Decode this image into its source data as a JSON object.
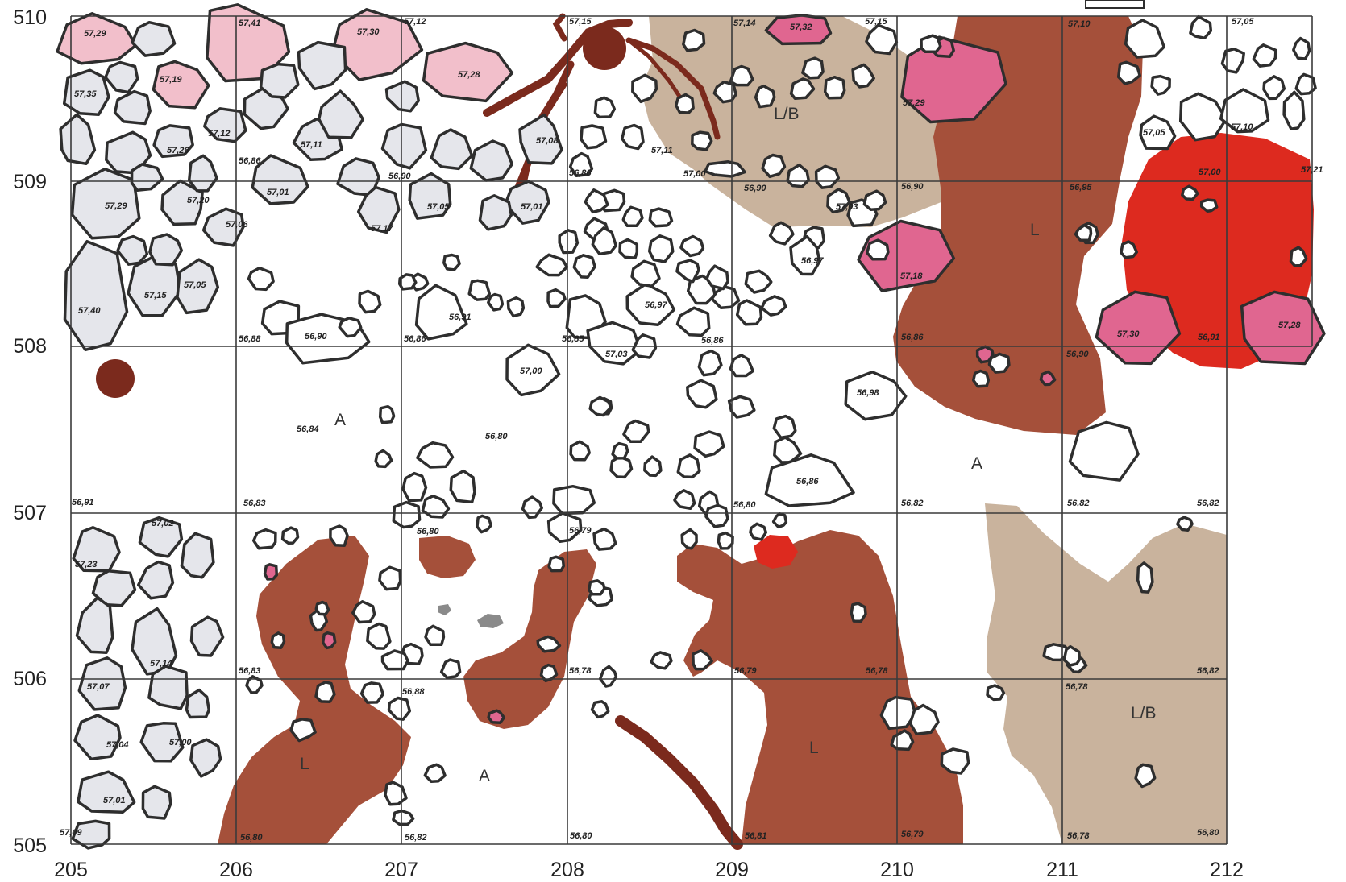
{
  "axes": {
    "x_ticks": [
      "205",
      "206",
      "207",
      "208",
      "209",
      "210",
      "211",
      "212"
    ],
    "y_ticks": [
      "510",
      "509",
      "508",
      "507",
      "506",
      "505"
    ]
  },
  "colors": {
    "paving_stone": "#e5e6eb",
    "pink_stone": "#f2bfcb",
    "magenta_stone": "#e06690",
    "brown_layer_L": "#a5503a",
    "tan_layer_LB": "#c9b39d",
    "red_zone": "#dd2a1f",
    "root_brown": "#7b2a1d",
    "grey_spot": "#8a8a8a",
    "outline": "#2e2e2e"
  },
  "zone_labels": [
    {
      "id": "lb-top",
      "text": "L/B"
    },
    {
      "id": "l-top",
      "text": "L"
    },
    {
      "id": "a-1",
      "text": "A"
    },
    {
      "id": "a-2",
      "text": "A"
    },
    {
      "id": "l-bl",
      "text": "L"
    },
    {
      "id": "a-3",
      "text": "A"
    },
    {
      "id": "l-bm",
      "text": "L"
    },
    {
      "id": "lb-br",
      "text": "L/B"
    }
  ],
  "elevations": [
    "57,29",
    "57,41",
    "57,30",
    "57,12",
    "57,15",
    "57,14",
    "57,32",
    "57,15",
    "57,10",
    "57,05",
    "57,35",
    "57,19",
    "57,28",
    "57,29",
    "57,26",
    "57,12",
    "57,11",
    "57,08",
    "57,11",
    "57,05",
    "57,10",
    "56,86",
    "56,90",
    "56,86",
    "57,00",
    "56,90",
    "57,00",
    "57,21",
    "57,29",
    "57,20",
    "57,01",
    "57,05",
    "57,01",
    "57,03",
    "56,90",
    "56,95",
    "57,06",
    "57,17",
    "56,97",
    "57,18",
    "57,05",
    "57,15",
    "56,91",
    "56,97",
    "57,40",
    "56,88",
    "56,90",
    "56,86",
    "56,85",
    "57,03",
    "56,86",
    "56,86",
    "56,90",
    "57,30",
    "56,91",
    "57,28",
    "57,00",
    "56,98",
    "56,84",
    "56,80",
    "56,86",
    "56,91",
    "56,83",
    "56,80",
    "56,79",
    "56,80",
    "56,82",
    "56,82",
    "56,82",
    "57,02",
    "57,23",
    "57,14",
    "56,83",
    "56,88",
    "56,78",
    "56,79",
    "56,78",
    "56,78",
    "56,82",
    "57,07",
    "57,04",
    "57,00",
    "57,01",
    "57,09",
    "56,80",
    "56,82",
    "56,80",
    "56,81",
    "56,79",
    "56,78",
    "56,80"
  ]
}
